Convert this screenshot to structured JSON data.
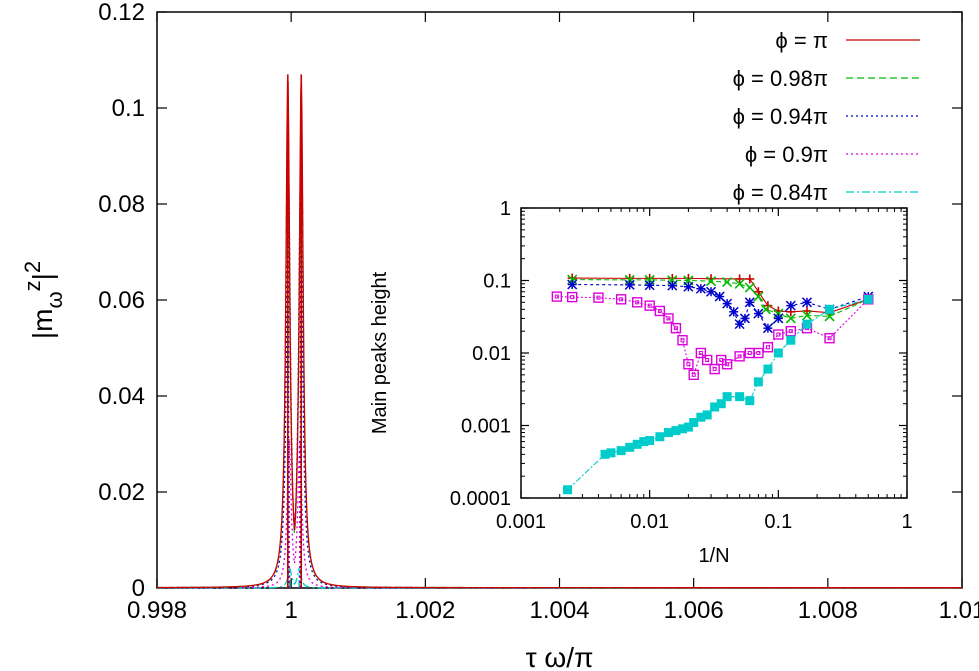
{
  "chart_data": [
    {
      "type": "line",
      "xlabel": "τ ω/π",
      "ylabel": "|m_ω^z|^2",
      "xlim": [
        0.998,
        1.01
      ],
      "ylim": [
        0,
        0.12
      ],
      "x_ticks": [
        "0.998",
        "1",
        "1.002",
        "1.004",
        "1.006",
        "1.008",
        "1.01"
      ],
      "y_ticks": [
        "0",
        "0.02",
        "0.04",
        "0.06",
        "0.08",
        "0.1",
        "0.12"
      ],
      "x_tick_values": [
        0.998,
        1.0,
        1.002,
        1.004,
        1.006,
        1.008,
        1.01
      ],
      "y_tick_values": [
        0,
        0.02,
        0.04,
        0.06,
        0.08,
        0.1,
        0.12
      ],
      "legend_position": "top-right",
      "series": [
        {
          "name": "ϕ = π",
          "color": "#cc0000",
          "dash": "solid",
          "peak_height": 0.107,
          "peak_positions": [
            0.99995,
            1.00015
          ]
        },
        {
          "name": "ϕ = 0.98π",
          "color": "#00bb00",
          "dash": "dashed",
          "peak_height": 0.102,
          "peak_positions": [
            0.99995,
            1.00015
          ]
        },
        {
          "name": "ϕ = 0.94π",
          "color": "#0000cc",
          "dash": "dotted",
          "peak_height": 0.087,
          "peak_positions": [
            0.99996,
            1.00014
          ]
        },
        {
          "name": "ϕ = 0.9π",
          "color": "#dd00dd",
          "dash": "dotted",
          "peak_height": 0.031,
          "peak_positions": [
            0.99997,
            1.00013
          ]
        },
        {
          "name": "ϕ = 0.84π",
          "color": "#00cccc",
          "dash": "dashdot",
          "peak_height": 0.004,
          "peak_positions": [
            0.99998,
            1.00012
          ]
        }
      ]
    },
    {
      "type": "scatter",
      "xlabel": "1/N",
      "ylabel": "Main peaks height",
      "xscale": "log",
      "yscale": "log",
      "xlim": [
        0.001,
        1
      ],
      "ylim": [
        0.0001,
        1
      ],
      "x_ticks": [
        "0.001",
        "0.01",
        "0.1",
        "1"
      ],
      "y_ticks": [
        "0.0001",
        "0.001",
        "0.01",
        "0.1",
        "1"
      ],
      "x_tick_values": [
        0.001,
        0.01,
        0.1,
        1
      ],
      "y_tick_values": [
        0.0001,
        0.001,
        0.01,
        0.1,
        1
      ],
      "series": [
        {
          "name": "ϕ = π",
          "color": "#cc0000",
          "marker": "+",
          "x": [
            0.0025,
            0.007,
            0.01,
            0.015,
            0.02,
            0.03,
            0.05,
            0.06,
            0.07,
            0.083,
            0.1,
            0.125,
            0.167,
            0.25,
            0.5
          ],
          "y": [
            0.108,
            0.107,
            0.107,
            0.107,
            0.107,
            0.106,
            0.105,
            0.105,
            0.07,
            0.045,
            0.038,
            0.037,
            0.038,
            0.036,
            0.055
          ]
        },
        {
          "name": "ϕ = 0.98π",
          "color": "#00bb00",
          "marker": "x",
          "x": [
            0.0025,
            0.007,
            0.01,
            0.015,
            0.02,
            0.03,
            0.04,
            0.05,
            0.06,
            0.07,
            0.08,
            0.1,
            0.125,
            0.167,
            0.25,
            0.5
          ],
          "y": [
            0.103,
            0.102,
            0.102,
            0.101,
            0.1,
            0.098,
            0.095,
            0.09,
            0.08,
            0.06,
            0.04,
            0.035,
            0.03,
            0.033,
            0.032,
            0.055
          ]
        },
        {
          "name": "ϕ = 0.94π",
          "color": "#0000cc",
          "marker": "*",
          "x": [
            0.0025,
            0.007,
            0.01,
            0.015,
            0.02,
            0.025,
            0.03,
            0.035,
            0.04,
            0.045,
            0.05,
            0.055,
            0.06,
            0.07,
            0.083,
            0.1,
            0.125,
            0.167,
            0.25,
            0.5
          ],
          "y": [
            0.088,
            0.087,
            0.086,
            0.085,
            0.082,
            0.077,
            0.07,
            0.06,
            0.048,
            0.037,
            0.025,
            0.03,
            0.05,
            0.035,
            0.022,
            0.03,
            0.045,
            0.05,
            0.04,
            0.06
          ]
        },
        {
          "name": "ϕ = 0.9π",
          "color": "#dd00dd",
          "marker": "open-square",
          "x": [
            0.0019,
            0.0025,
            0.004,
            0.006,
            0.008,
            0.01,
            0.012,
            0.014,
            0.016,
            0.018,
            0.02,
            0.022,
            0.025,
            0.028,
            0.032,
            0.036,
            0.04,
            0.05,
            0.06,
            0.07,
            0.083,
            0.1,
            0.125,
            0.167,
            0.25,
            0.5
          ],
          "y": [
            0.06,
            0.059,
            0.058,
            0.055,
            0.05,
            0.045,
            0.038,
            0.03,
            0.022,
            0.015,
            0.007,
            0.005,
            0.01,
            0.008,
            0.006,
            0.008,
            0.007,
            0.009,
            0.01,
            0.01,
            0.012,
            0.018,
            0.02,
            0.022,
            0.016,
            0.055
          ]
        },
        {
          "name": "ϕ = 0.84π",
          "color": "#00cccc",
          "marker": "filled-square",
          "x": [
            0.0023,
            0.0045,
            0.005,
            0.006,
            0.007,
            0.008,
            0.009,
            0.01,
            0.012,
            0.014,
            0.016,
            0.018,
            0.02,
            0.022,
            0.025,
            0.028,
            0.032,
            0.036,
            0.04,
            0.05,
            0.06,
            0.07,
            0.083,
            0.1,
            0.125,
            0.167,
            0.25,
            0.5
          ],
          "y": [
            0.00013,
            0.0004,
            0.00042,
            0.00045,
            0.0005,
            0.00055,
            0.0006,
            0.00062,
            0.0007,
            0.0008,
            0.00085,
            0.0009,
            0.00095,
            0.0011,
            0.0013,
            0.0014,
            0.0018,
            0.002,
            0.0025,
            0.0025,
            0.0022,
            0.004,
            0.006,
            0.01,
            0.015,
            0.025,
            0.04,
            0.055
          ]
        }
      ]
    }
  ]
}
